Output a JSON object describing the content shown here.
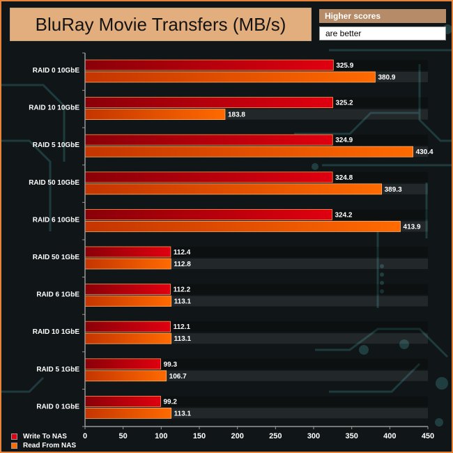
{
  "title": "BluRay Movie Transfers (MB/s)",
  "note_line1": "Higher scores",
  "note_line2": "are better",
  "colors": {
    "write": "#e00010",
    "write_dark": "#8a0008",
    "read": "#ff6a00",
    "read_dark": "#c43500",
    "accent_border": "#e8833a",
    "title_bg": "#e3ae7e"
  },
  "chart_data": {
    "type": "bar",
    "orientation": "horizontal",
    "title": "BluRay Movie Transfers (MB/s)",
    "categories": [
      "RAID 0 10GbE",
      "RAID 10 10GbE",
      "RAID 5 10GbE",
      "RAID 50 10GbE",
      "RAID 6 10GbE",
      "RAID 50 1GbE",
      "RAID 6 1GbE",
      "RAID 10 1GbE",
      "RAID 5 1GbE",
      "RAID 0 1GbE"
    ],
    "series": [
      {
        "name": "Write To NAS",
        "values": [
          325.9,
          325.2,
          324.9,
          324.8,
          324.2,
          112.4,
          112.2,
          112.1,
          99.3,
          99.2
        ]
      },
      {
        "name": "Read From NAS",
        "values": [
          380.9,
          183.8,
          430.4,
          389.3,
          413.9,
          112.8,
          113.1,
          113.1,
          106.7,
          113.1
        ]
      }
    ],
    "xlim": [
      0,
      450
    ],
    "xticks": [
      "0",
      "50",
      "100",
      "150",
      "200",
      "250",
      "300",
      "350",
      "400",
      "450"
    ],
    "legend_position": "bottom-left",
    "grid": false
  }
}
